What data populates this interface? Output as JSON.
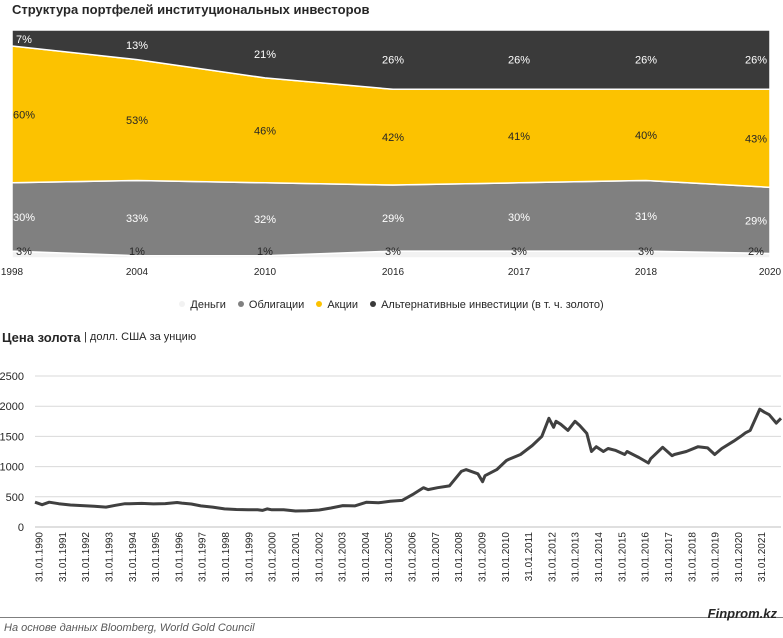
{
  "chart_data": [
    {
      "type": "area",
      "stacked": true,
      "percent": true,
      "title": "Структура портфелей институциональных инвесторов",
      "categories": [
        "1998",
        "2004",
        "2010",
        "2016",
        "2017",
        "2018",
        "2020"
      ],
      "series": [
        {
          "name": "Деньги",
          "color": "#f2f2f2",
          "values": [
            3,
            1,
            1,
            3,
            3,
            3,
            2
          ]
        },
        {
          "name": "Облигации",
          "color": "#808080",
          "values": [
            30,
            33,
            32,
            29,
            30,
            31,
            29
          ]
        },
        {
          "name": "Акции",
          "color": "#fcc200",
          "values": [
            60,
            53,
            46,
            42,
            41,
            40,
            43
          ]
        },
        {
          "name": "Альтернативные инвестиции (в т. ч. золото)",
          "color": "#3a3a3a",
          "values": [
            7,
            13,
            21,
            26,
            26,
            26,
            26
          ]
        }
      ],
      "label_suffix": "%",
      "legend_position": "bottom"
    },
    {
      "type": "line",
      "title": "Цена золота",
      "subtitle": "| долл. США за унцию",
      "color": "#404040",
      "ylim": [
        0,
        2500
      ],
      "yticks": [
        0,
        500,
        1000,
        1500,
        2000,
        2500
      ],
      "xticks": [
        "31.01.1990",
        "31.01.1991",
        "31.01.1992",
        "31.01.1993",
        "31.01.1994",
        "31.01.1995",
        "31.01.1996",
        "31.01.1997",
        "31.01.1998",
        "31.01.1999",
        "31.01.2000",
        "31.01.2001",
        "31.01.2002",
        "31.01.2003",
        "31.01.2004",
        "31.01.2005",
        "31.01.2006",
        "31.01.2007",
        "31.01.2008",
        "31.01.2009",
        "31.01.2010",
        "31.01.2011",
        "31.01.2012",
        "31.01.2013",
        "31.01.2014",
        "31.01.2015",
        "31.01.2016",
        "31.01.2017",
        "31.01.2018",
        "31.01.2019",
        "31.01.2020",
        "31.01.2021"
      ],
      "x": [
        1990.0,
        1990.3,
        1990.6,
        1991.0,
        1991.5,
        1992.0,
        1992.5,
        1993.0,
        1993.4,
        1993.8,
        1994.0,
        1994.5,
        1995.0,
        1995.5,
        1996.0,
        1996.2,
        1996.6,
        1997.0,
        1997.5,
        1998.0,
        1998.5,
        1999.0,
        1999.4,
        1999.6,
        1999.8,
        2000.0,
        2000.5,
        2001.0,
        2001.5,
        2002.0,
        2002.5,
        2003.0,
        2003.5,
        2004.0,
        2004.5,
        2005.0,
        2005.5,
        2006.0,
        2006.4,
        2006.6,
        2007.0,
        2007.5,
        2008.0,
        2008.2,
        2008.7,
        2008.9,
        2009.0,
        2009.5,
        2009.9,
        2010.0,
        2010.5,
        2011.0,
        2011.4,
        2011.7,
        2011.9,
        2012.0,
        2012.2,
        2012.5,
        2012.8,
        2013.0,
        2013.3,
        2013.5,
        2013.7,
        2014.0,
        2014.2,
        2014.5,
        2014.9,
        2015.0,
        2015.5,
        2015.9,
        2016.0,
        2016.5,
        2016.9,
        2017.0,
        2017.5,
        2018.0,
        2018.4,
        2018.7,
        2019.0,
        2019.5,
        2019.8,
        2020.0,
        2020.2,
        2020.6,
        2020.8,
        2021.0,
        2021.3,
        2021.5
      ],
      "values": [
        410,
        370,
        410,
        385,
        365,
        355,
        345,
        330,
        360,
        385,
        385,
        390,
        382,
        388,
        405,
        395,
        380,
        350,
        330,
        300,
        290,
        287,
        285,
        275,
        300,
        285,
        285,
        265,
        270,
        282,
        315,
        355,
        350,
        410,
        400,
        425,
        440,
        550,
        650,
        620,
        650,
        680,
        920,
        950,
        880,
        750,
        850,
        950,
        1100,
        1120,
        1200,
        1350,
        1500,
        1800,
        1650,
        1750,
        1700,
        1600,
        1750,
        1680,
        1550,
        1250,
        1330,
        1250,
        1300,
        1270,
        1200,
        1250,
        1150,
        1060,
        1130,
        1320,
        1180,
        1200,
        1250,
        1330,
        1310,
        1200,
        1300,
        1420,
        1500,
        1560,
        1600,
        1950,
        1900,
        1860,
        1720,
        1800
      ]
    }
  ],
  "source": "На основе данных  Bloomberg, World Gold Council",
  "brand": "Finprom.kz"
}
